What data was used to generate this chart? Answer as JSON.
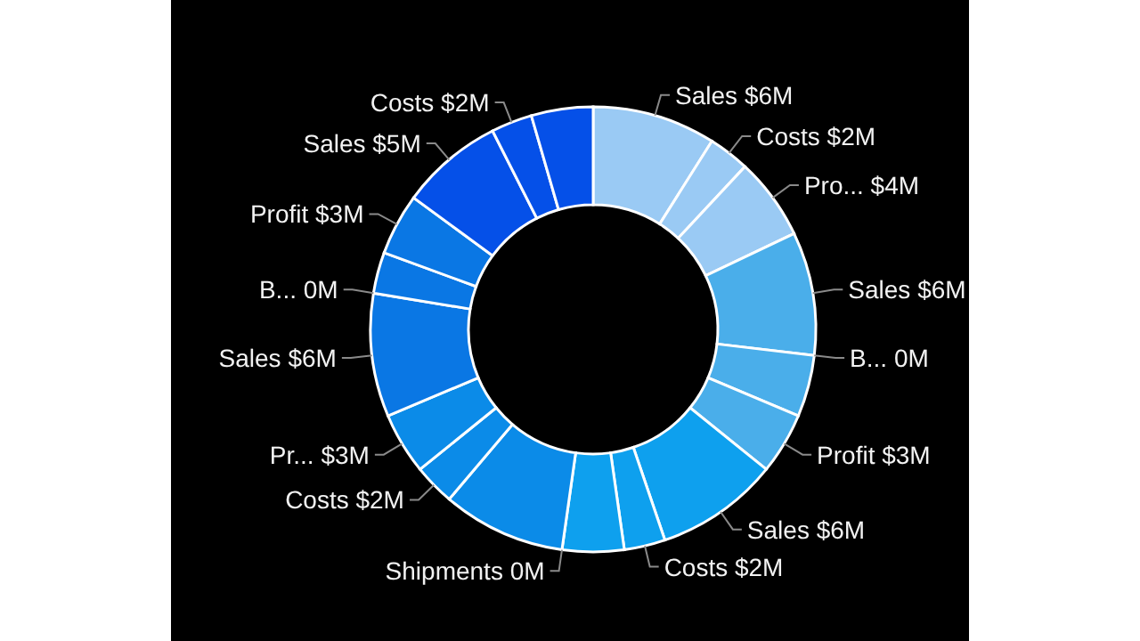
{
  "chart_data": {
    "type": "donut",
    "categories": [
      "Sales",
      null,
      "Costs",
      "Pro...",
      "Sales",
      "B...",
      null,
      "Profit",
      "Sales",
      null,
      "Costs",
      null,
      "Shipments",
      null,
      null,
      "Costs",
      "Pr...",
      "Sales",
      "B...",
      null,
      "Profit",
      "Sales",
      null,
      "Costs",
      null
    ],
    "values": [
      6,
      0,
      2,
      4,
      6,
      0,
      3,
      3,
      6,
      0,
      2,
      3,
      0,
      6,
      0,
      2,
      3,
      6,
      0,
      2,
      3,
      5,
      0,
      2,
      3
    ],
    "value_labels": [
      "$6M",
      null,
      "$2M",
      "$4M",
      "$6M",
      "0M",
      null,
      "$3M",
      "$6M",
      null,
      "$2M",
      null,
      "0M",
      null,
      null,
      "$2M",
      "$3M",
      "$6M",
      "0M",
      null,
      "$3M",
      "$5M",
      null,
      "$2M",
      null
    ],
    "colors": [
      "#9acaf4",
      "#9acaf4",
      "#9acaf4",
      "#9acaf4",
      "#4aaeea",
      "#4aaeea",
      "#4aaeea",
      "#4aaeea",
      "#0ea0ee",
      "#0ea0ee",
      "#0ea0ee",
      "#0ea0ee",
      "#0ea0ee",
      "#0b8be8",
      "#0b8be8",
      "#0b8be8",
      "#0b8be8",
      "#0a77e4",
      "#0a77e4",
      "#0a77e4",
      "#0a77e4",
      "#0550e8",
      "#0550e8",
      "#0550e8",
      "#0550e8"
    ]
  }
}
